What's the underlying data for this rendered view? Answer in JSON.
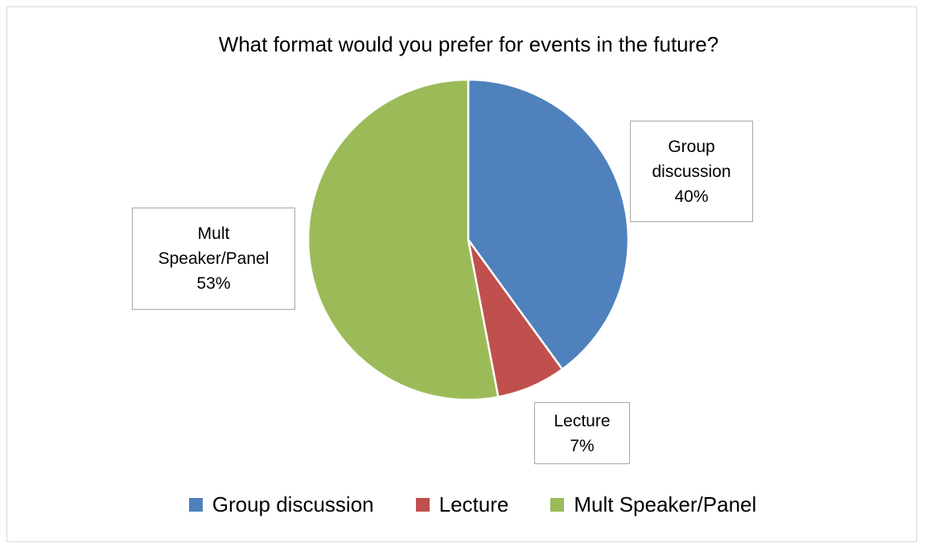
{
  "chart_data": {
    "type": "pie",
    "title": "What format would you prefer for events in the future?",
    "categories": [
      "Group discussion",
      "Lecture",
      "Mult Speaker/Panel"
    ],
    "values": [
      40,
      7,
      53
    ],
    "value_labels": [
      "40%",
      "7%",
      "53%"
    ],
    "colors": [
      "#4f81bd",
      "#c0504d",
      "#9bbb59"
    ],
    "legend": "bottom"
  }
}
